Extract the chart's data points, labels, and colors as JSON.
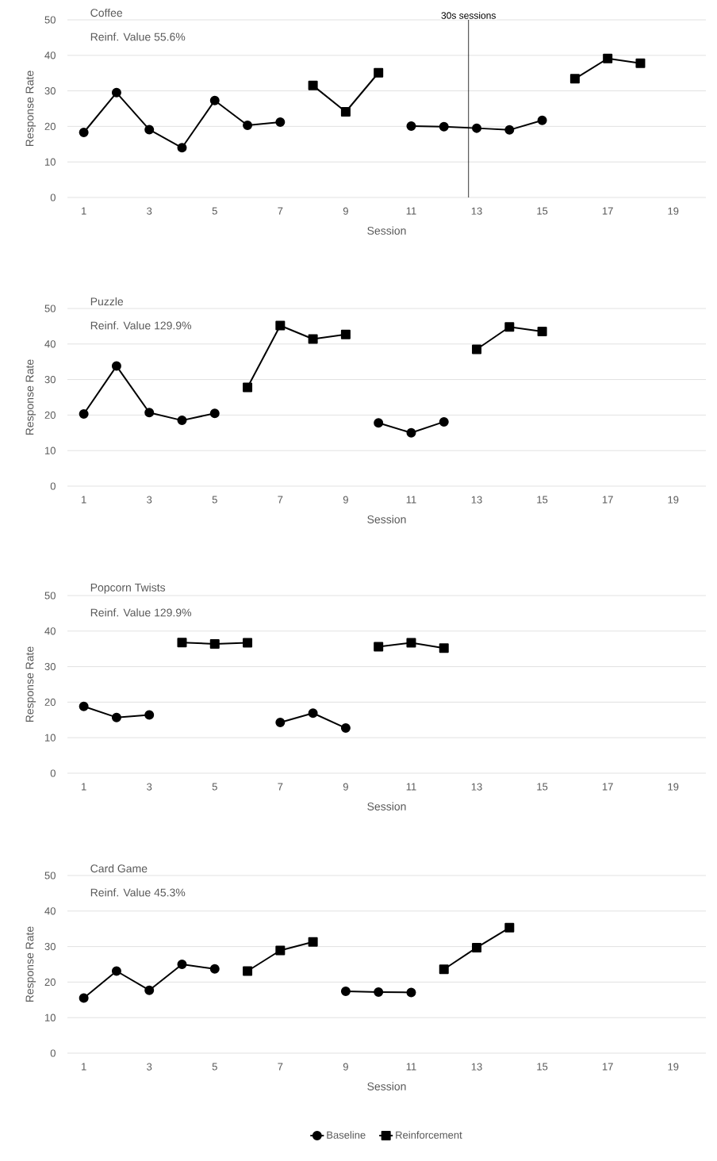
{
  "chart_data": [
    {
      "type": "line",
      "title": "Coffee",
      "subtitle": "Reinf. Value 55.6%",
      "xlabel": "Session",
      "ylabel": "Response Rate",
      "x": [
        1,
        2,
        3,
        4,
        5,
        6,
        7,
        8,
        9,
        10,
        11,
        12,
        13,
        14,
        15,
        16,
        17,
        18
      ],
      "series": [
        {
          "color": "#000000",
          "marker": "circle",
          "values": [
            18.3,
            29.5,
            19.1,
            14.0,
            27.3,
            20.3,
            21.2,
            null,
            null,
            null,
            20.1,
            19.9,
            19.5,
            19.0,
            21.7,
            null,
            null,
            null
          ]
        },
        {
          "color": "#000000",
          "marker": "square",
          "values": [
            null,
            null,
            null,
            null,
            null,
            null,
            null,
            31.5,
            24.1,
            35.1,
            null,
            null,
            null,
            null,
            null,
            33.4,
            39.1,
            37.8
          ]
        }
      ],
      "xlim": [
        0.5,
        20
      ],
      "ylim": [
        0,
        50
      ],
      "xticks": [
        1,
        3,
        5,
        7,
        9,
        11,
        13,
        15,
        17,
        19
      ],
      "yticks": [
        0,
        10,
        20,
        30,
        40,
        50
      ],
      "grid": "y",
      "legend": false,
      "ref_lines": [
        {
          "axis": "x",
          "value": 12.75,
          "label": "30s sessions",
          "color": "#000000"
        }
      ]
    },
    {
      "type": "line",
      "title": "Puzzle",
      "subtitle": "Reinf. Value 129.9%",
      "xlabel": "Session",
      "ylabel": "Response Rate",
      "x": [
        1,
        2,
        3,
        4,
        5,
        6,
        7,
        8,
        9,
        10,
        11,
        12,
        13,
        14,
        15
      ],
      "series": [
        {
          "color": "#000000",
          "marker": "circle",
          "values": [
            20.3,
            33.8,
            20.7,
            18.5,
            20.5,
            null,
            null,
            null,
            null,
            17.8,
            15.0,
            18.1,
            null,
            null,
            null
          ]
        },
        {
          "color": "#000000",
          "marker": "square",
          "values": [
            null,
            null,
            null,
            null,
            null,
            27.8,
            45.2,
            41.4,
            42.7,
            null,
            null,
            null,
            38.5,
            44.8,
            43.5
          ]
        }
      ],
      "xlim": [
        0.5,
        20
      ],
      "ylim": [
        0,
        50
      ],
      "xticks": [
        1,
        3,
        5,
        7,
        9,
        11,
        13,
        15,
        17,
        19
      ],
      "yticks": [
        0,
        10,
        20,
        30,
        40,
        50
      ],
      "grid": "y",
      "legend": false
    },
    {
      "type": "line",
      "title": "Popcorn Twists",
      "subtitle": "Reinf. Value 129.9%",
      "xlabel": "Session",
      "ylabel": "Response Rate",
      "x": [
        1,
        2,
        3,
        4,
        5,
        6,
        7,
        8,
        9,
        10,
        11,
        12
      ],
      "series": [
        {
          "color": "#000000",
          "marker": "circle",
          "values": [
            18.8,
            15.7,
            16.4,
            null,
            null,
            null,
            14.3,
            16.9,
            12.7,
            null,
            null,
            null
          ]
        },
        {
          "color": "#000000",
          "marker": "square",
          "values": [
            null,
            null,
            null,
            36.8,
            36.4,
            36.7,
            null,
            null,
            null,
            35.6,
            36.7,
            35.2
          ]
        }
      ],
      "xlim": [
        0.5,
        20
      ],
      "ylim": [
        0,
        50
      ],
      "xticks": [
        1,
        3,
        5,
        7,
        9,
        11,
        13,
        15,
        17,
        19
      ],
      "yticks": [
        0,
        10,
        20,
        30,
        40,
        50
      ],
      "grid": "y",
      "legend": false
    },
    {
      "type": "line",
      "title": "Card Game",
      "subtitle": "Reinf. Value 45.3%",
      "xlabel": "Session",
      "ylabel": "Response Rate",
      "x": [
        1,
        2,
        3,
        4,
        5,
        6,
        7,
        8,
        9,
        10,
        11,
        12,
        13,
        14
      ],
      "series": [
        {
          "name": "Baseline",
          "color": "#000000",
          "marker": "circle",
          "values": [
            15.5,
            23.1,
            17.7,
            25.0,
            23.7,
            null,
            null,
            null,
            17.4,
            17.2,
            17.1,
            null,
            null,
            null
          ]
        },
        {
          "name": "Reinforcement",
          "color": "#000000",
          "marker": "square",
          "values": [
            null,
            null,
            null,
            null,
            null,
            23.1,
            28.9,
            31.3,
            null,
            null,
            null,
            23.6,
            29.7,
            35.3
          ]
        }
      ],
      "xlim": [
        0.5,
        20
      ],
      "ylim": [
        0,
        50
      ],
      "xticks": [
        1,
        3,
        5,
        7,
        9,
        11,
        13,
        15,
        17,
        19
      ],
      "yticks": [
        0,
        10,
        20,
        30,
        40,
        50
      ],
      "grid": "y",
      "legend": "bottom"
    }
  ]
}
